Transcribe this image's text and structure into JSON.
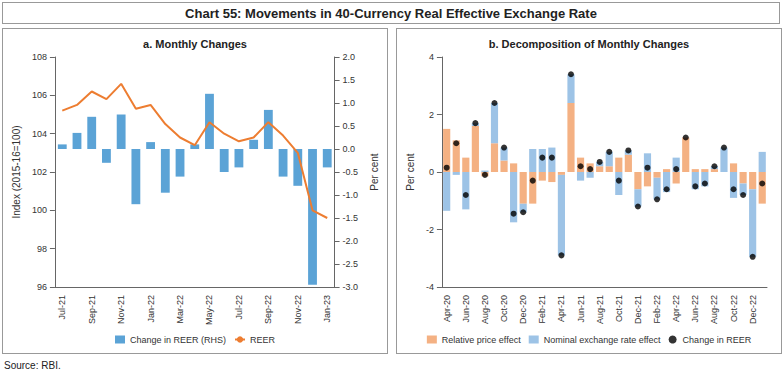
{
  "title": "Chart 55: Movements in 40-Currency Real Effective Exchange Rate",
  "source": "Source: RBI.",
  "chart_data": [
    {
      "type": "bar",
      "title": "a. Monthly Changes",
      "categories": [
        "Jul-21",
        null,
        "Sep-21",
        null,
        "Nov-21",
        null,
        "Jan-22",
        null,
        "Mar-22",
        null,
        "May-22",
        null,
        "Jul-22",
        null,
        "Sep-22",
        null,
        "Nov-22",
        null,
        "Jan-23"
      ],
      "series": [
        {
          "name": "Change in REER (RHS)",
          "type": "bar",
          "axis": "y2",
          "color": "#5ba3d6",
          "values": [
            0.1,
            0.35,
            0.7,
            -0.3,
            0.75,
            -1.2,
            0.15,
            -0.95,
            -0.6,
            0.1,
            1.2,
            -0.5,
            -0.4,
            0.2,
            0.85,
            -0.6,
            -0.8,
            -2.95,
            -0.4
          ]
        },
        {
          "name": "REER",
          "type": "line",
          "color": "#ed7d31",
          "values": [
            105.2,
            105.5,
            106.2,
            105.8,
            106.6,
            105.3,
            105.5,
            104.5,
            103.8,
            103.4,
            104.6,
            104.0,
            103.6,
            103.8,
            104.6,
            103.9,
            103.0,
            100.0,
            99.6
          ]
        }
      ],
      "ylabel": "Index (2015-16=100)",
      "y2label": "Per cent",
      "ylim": [
        96,
        108
      ],
      "yticks": [
        96,
        98,
        100,
        102,
        104,
        106,
        108
      ],
      "y2lim": [
        -3,
        2
      ],
      "y2ticks": [
        {
          "value": -3,
          "label": "-3.0"
        },
        -2.5,
        {
          "value": -2,
          "label": "-2.0"
        },
        -1.5,
        {
          "value": -1,
          "label": "-1.0"
        },
        -0.5,
        {
          "value": 0,
          "label": "0.0"
        },
        0.5,
        {
          "value": 1,
          "label": "1.0"
        },
        1.5,
        {
          "value": 2,
          "label": "2.0"
        }
      ],
      "grid": false,
      "legend": "bottom"
    },
    {
      "type": "bar",
      "title": "b. Decomposition of Monthly Changes",
      "stacked": true,
      "categories": [
        "Apr-20",
        null,
        "Jun-20",
        null,
        "Aug-20",
        null,
        "Oct-20",
        null,
        "Dec-20",
        null,
        "Feb-21",
        null,
        "Apr-21",
        null,
        "Jun-21",
        null,
        "Aug-21",
        null,
        "Oct-21",
        null,
        "Dec-21",
        null,
        "Feb-22",
        null,
        "Apr-22",
        null,
        "Jun-22",
        null,
        "Aug-22",
        null,
        "Oct-22",
        null,
        "Dec-22",
        null
      ],
      "series": [
        {
          "name": "Relative price effect",
          "type": "bar",
          "color": "#f4b183",
          "values": [
            1.5,
            1.1,
            0.5,
            1.6,
            -0.15,
            1.0,
            0.4,
            0.3,
            -1.1,
            -1.1,
            -0.3,
            -0.35,
            -0.1,
            2.4,
            0.5,
            0.3,
            0.2,
            0.2,
            0.5,
            0.6,
            -0.6,
            -0.5,
            -0.2,
            0.1,
            -0.4,
            1.2,
            0.1,
            0.1,
            0.1,
            0.0,
            0.3,
            -0.4,
            -0.6,
            -1.1
          ]
        },
        {
          "name": "Nominal exchange rate effect",
          "type": "bar",
          "color": "#9dc3e6",
          "values": [
            -1.35,
            -0.1,
            -1.3,
            0.1,
            0.05,
            1.4,
            0.45,
            -1.75,
            -0.3,
            0.8,
            0.8,
            0.85,
            -2.8,
            1.0,
            -0.3,
            -0.2,
            0.15,
            0.5,
            -0.8,
            0.15,
            -0.6,
            0.65,
            -0.75,
            -0.7,
            0.5,
            0.0,
            -0.6,
            -0.5,
            0.1,
            0.85,
            -0.9,
            -0.4,
            -2.35,
            0.7
          ]
        },
        {
          "name": "Change in REER",
          "type": "scatter",
          "color": "#000000",
          "marker": "circle",
          "values": [
            0.15,
            1.0,
            -0.8,
            1.7,
            -0.1,
            2.4,
            0.85,
            -1.45,
            -1.4,
            -0.3,
            0.5,
            0.5,
            -2.9,
            3.4,
            0.2,
            0.1,
            0.35,
            0.7,
            -0.3,
            0.75,
            -1.2,
            0.15,
            -0.95,
            -0.6,
            0.1,
            1.2,
            -0.5,
            -0.4,
            0.2,
            0.85,
            -0.6,
            -0.8,
            -2.95,
            -0.4
          ]
        }
      ],
      "ylabel": "Per cent",
      "ylim": [
        -4,
        4
      ],
      "yticks": [
        -4,
        -2,
        0,
        2,
        4
      ],
      "grid": false,
      "legend": "bottom"
    }
  ]
}
